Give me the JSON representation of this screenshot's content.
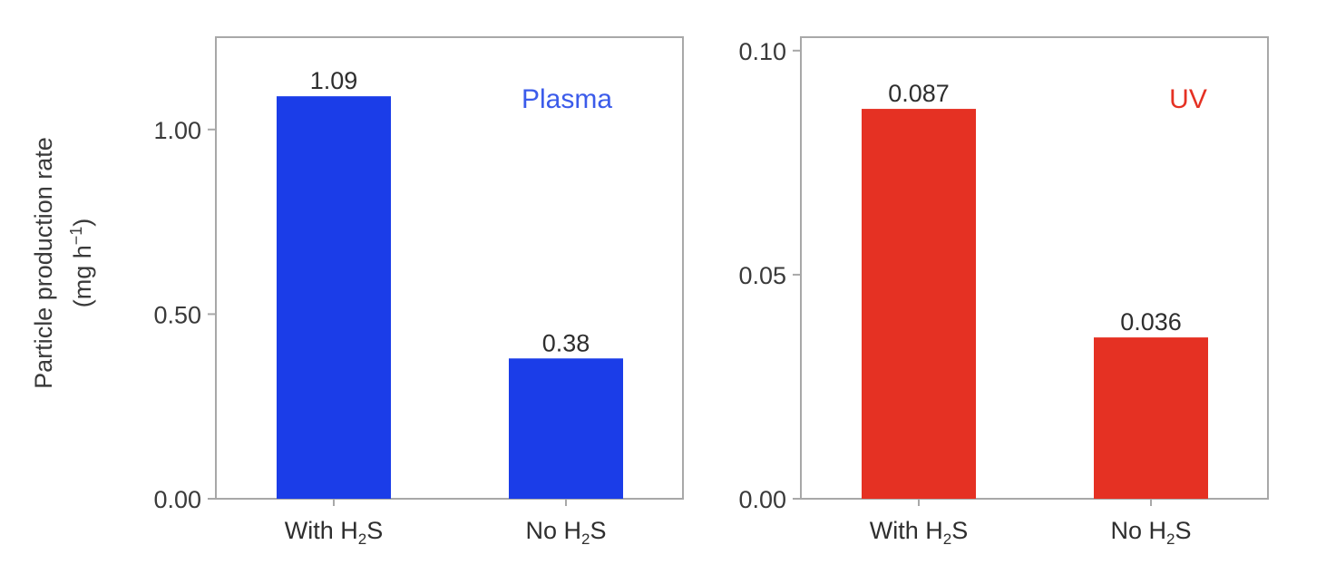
{
  "chart_data": [
    {
      "type": "bar",
      "panel_label": "Plasma",
      "categories": [
        {
          "main": "With H",
          "sub": "2",
          "tail": "S"
        },
        {
          "main": "No H",
          "sub": "2",
          "tail": "S"
        }
      ],
      "values": [
        1.09,
        0.38
      ],
      "data_labels": [
        "1.09",
        "0.38"
      ],
      "ylabel": "Particle production rate",
      "yunit": {
        "pre": "(mg h",
        "sup": "−1",
        "post": ")"
      },
      "ylim": [
        0,
        1.25
      ],
      "yticks": [
        0.0,
        0.5,
        1.0
      ],
      "ytick_labels": [
        "0.00",
        "0.50",
        "1.00"
      ],
      "color": "#1b3de8",
      "label_color": "#3b5bea"
    },
    {
      "type": "bar",
      "panel_label": "UV",
      "categories": [
        {
          "main": "With H",
          "sub": "2",
          "tail": "S"
        },
        {
          "main": "No H",
          "sub": "2",
          "tail": "S"
        }
      ],
      "values": [
        0.087,
        0.036
      ],
      "data_labels": [
        "0.087",
        "0.036"
      ],
      "ylim": [
        0,
        0.103
      ],
      "yticks": [
        0.0,
        0.05,
        0.1
      ],
      "ytick_labels": [
        "0.00",
        "0.05",
        "0.10"
      ],
      "color": "#e53123",
      "label_color": "#e53123"
    }
  ]
}
